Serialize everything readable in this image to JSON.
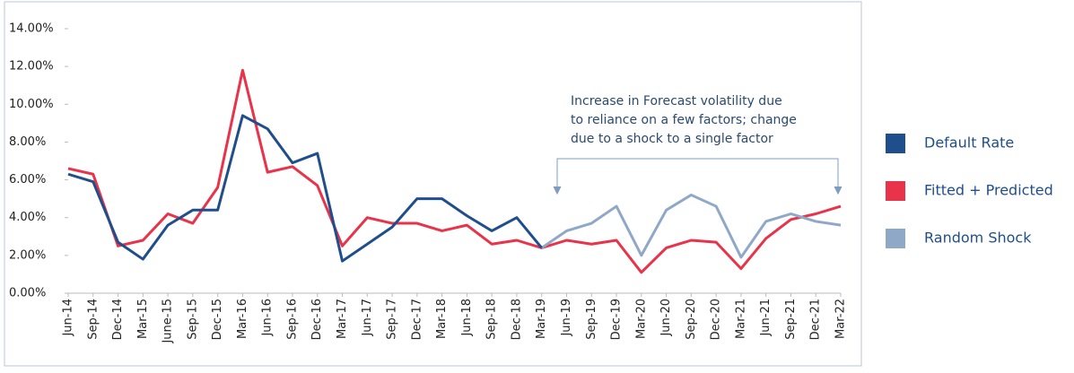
{
  "chart_data": {
    "type": "line",
    "categories": [
      "Jun-14",
      "Sep-14",
      "Dec-14",
      "Mar-15",
      "June-15",
      "Sep-15",
      "Dec-15",
      "Mar-16",
      "Jun-16",
      "Sep-16",
      "Dec-16",
      "Mar-17",
      "Jun-17",
      "Sep-17",
      "Dec-17",
      "Mar-18",
      "Jun-18",
      "Sep-18",
      "Dec-18",
      "Mar-19",
      "Jun-19",
      "Sep-19",
      "Dec-19",
      "Mar-20",
      "Jun-20",
      "Sep-20",
      "Dec-20",
      "Mar-21",
      "Jun-21",
      "Sep-21",
      "Dec-21",
      "Mar-22"
    ],
    "series": [
      {
        "name": "Default Rate",
        "color": "#1f4e8c",
        "values": [
          6.3,
          5.9,
          2.7,
          1.8,
          3.6,
          4.4,
          4.4,
          9.4,
          8.7,
          6.9,
          7.4,
          1.7,
          2.6,
          3.5,
          5.0,
          5.0,
          4.1,
          3.3,
          4.0,
          2.4,
          null,
          null,
          null,
          null,
          null,
          null,
          null,
          null,
          null,
          null,
          null,
          null
        ]
      },
      {
        "name": "Fitted + Predicted",
        "color": "#e8334a",
        "values": [
          6.6,
          6.3,
          2.5,
          2.8,
          4.2,
          3.7,
          5.6,
          11.8,
          6.4,
          6.7,
          5.7,
          2.5,
          4.0,
          3.7,
          3.7,
          3.3,
          3.6,
          2.6,
          2.8,
          2.4,
          2.8,
          2.6,
          2.8,
          1.1,
          2.4,
          2.8,
          2.7,
          1.3,
          2.9,
          3.9,
          4.2,
          4.6
        ]
      },
      {
        "name": "Random Shock",
        "color": "#8fa8c8",
        "values": [
          null,
          null,
          null,
          null,
          null,
          null,
          null,
          null,
          null,
          null,
          null,
          null,
          null,
          null,
          null,
          null,
          null,
          null,
          null,
          2.4,
          3.3,
          3.7,
          4.6,
          2.0,
          4.4,
          5.2,
          4.6,
          1.9,
          3.8,
          4.2,
          3.8,
          3.6
        ]
      }
    ],
    "ylim": [
      0,
      14
    ],
    "yticks": [
      {
        "value": 0,
        "label": "0.00%"
      },
      {
        "value": 2,
        "label": "2.00%"
      },
      {
        "value": 4,
        "label": "4.00%"
      },
      {
        "value": 6,
        "label": "6.00%"
      },
      {
        "value": 8,
        "label": "8.00%"
      },
      {
        "value": 10,
        "label": "10.00%"
      },
      {
        "value": 12,
        "label": "12.00%"
      },
      {
        "value": 14,
        "label": "14.00%"
      }
    ],
    "annotation": [
      "Increase in Forecast volatility due",
      "to reliance on a few factors; change",
      "due to a shock to a single factor"
    ],
    "legend": "right"
  }
}
